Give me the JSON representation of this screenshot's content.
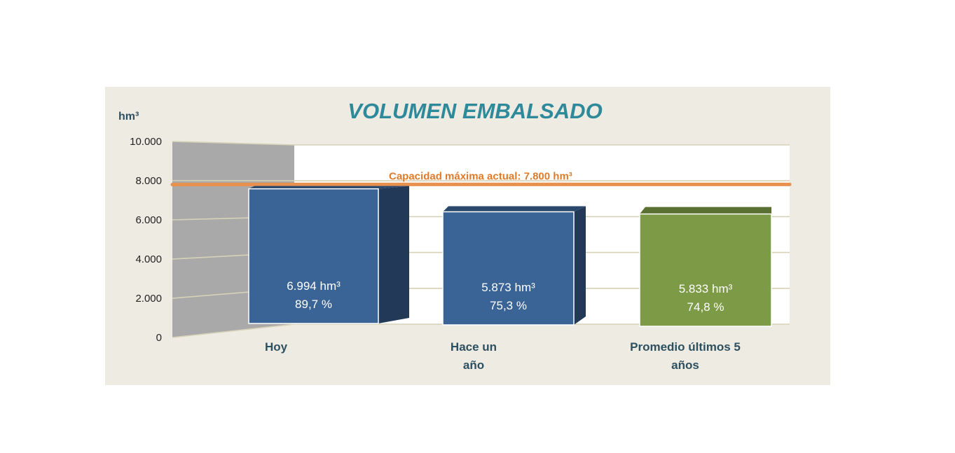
{
  "chart_data": {
    "type": "bar",
    "title": "VOLUMEN EMBALSADO",
    "ylabel": "hm³",
    "ylim": [
      0,
      10000
    ],
    "yticks": [
      "0",
      "2.000",
      "4.000",
      "6.000",
      "8.000",
      "10.000"
    ],
    "ytick_values": [
      0,
      2000,
      4000,
      6000,
      8000,
      10000
    ],
    "categories": [
      [
        "Hoy"
      ],
      [
        "Hace un",
        "año"
      ],
      [
        "Promedio últimos 5",
        "años"
      ]
    ],
    "values": [
      6994,
      5873,
      5833
    ],
    "value_labels": [
      "6.994 hm³",
      "5.873 hm³",
      "5.833 hm³"
    ],
    "percent_labels": [
      "89,7 %",
      "75,3 %",
      "74,8 %"
    ],
    "bar_colors": [
      "#3a6496",
      "#3a6496",
      "#7d9b46"
    ],
    "reference_line": {
      "value": 7800,
      "label": "Capacidad máxima actual: 7.800 hm³",
      "color": "#e8914f"
    },
    "grid": true
  }
}
